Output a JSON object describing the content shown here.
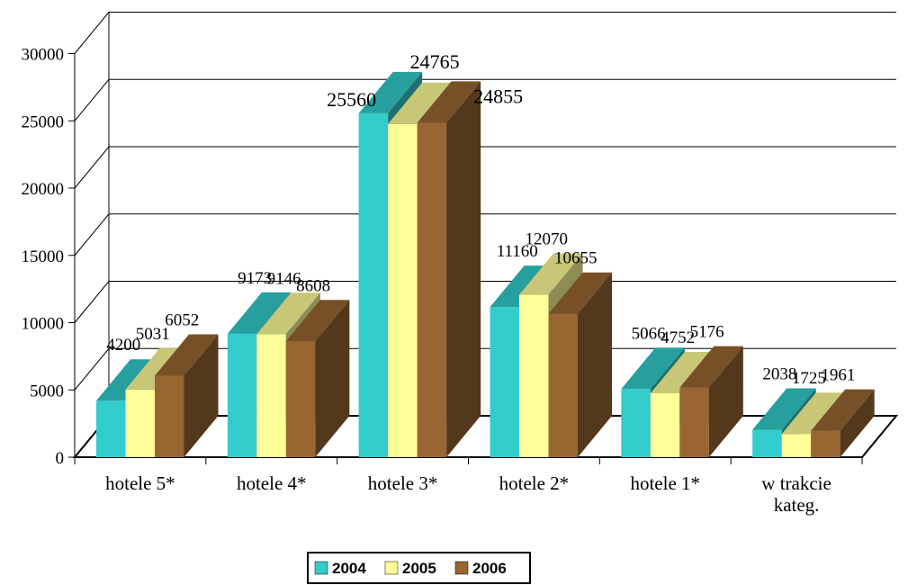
{
  "chart_data": {
    "type": "bar",
    "title": "",
    "xlabel": "",
    "ylabel": "",
    "ylim": [
      0,
      30000
    ],
    "yticks": [
      "0",
      "5000",
      "10000",
      "15000",
      "20000",
      "25000",
      "30000"
    ],
    "categories": [
      "hotele 5*",
      "hotele 4*",
      "hotele 3*",
      "hotele 2*",
      "hotele 1*",
      "w trakcie kateg."
    ],
    "series": [
      {
        "name": "2004",
        "color": "#33CCCC",
        "values": [
          4200,
          9173,
          25560,
          11160,
          5066,
          2038
        ]
      },
      {
        "name": "2005",
        "color": "#FFFF99",
        "values": [
          5031,
          9146,
          24765,
          12070,
          4752,
          1725
        ]
      },
      {
        "name": "2006",
        "color": "#996633",
        "values": [
          6052,
          8608,
          24855,
          10655,
          5176,
          1961
        ]
      }
    ],
    "grid": true,
    "legend": "bottom"
  }
}
